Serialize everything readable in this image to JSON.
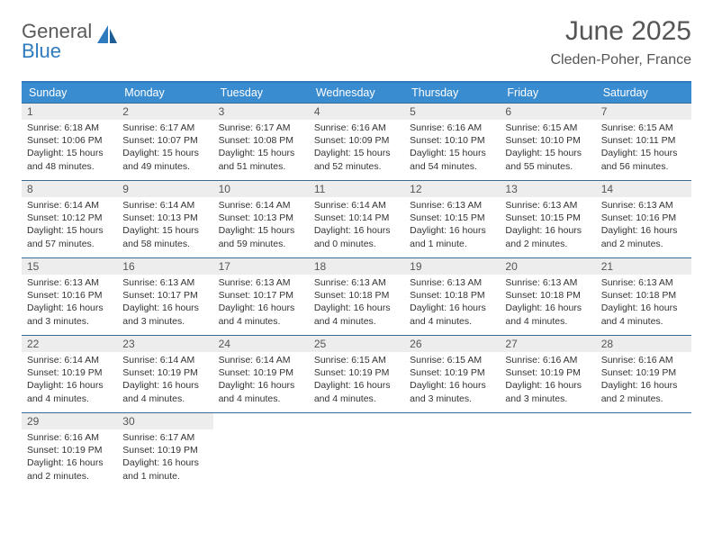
{
  "brand": {
    "word1": "General",
    "word2": "Blue"
  },
  "title": "June 2025",
  "location": "Cleden-Poher, France",
  "colors": {
    "header_bg": "#3a8cd1",
    "header_text": "#ffffff",
    "rule": "#3a6b94",
    "daynum_bg": "#ededed",
    "text": "#333333",
    "brand_blue": "#2f7bbf",
    "brand_gray": "#5a5a5a"
  },
  "dow": [
    "Sunday",
    "Monday",
    "Tuesday",
    "Wednesday",
    "Thursday",
    "Friday",
    "Saturday"
  ],
  "days": [
    {
      "n": "1",
      "sr": "Sunrise: 6:18 AM",
      "ss": "Sunset: 10:06 PM",
      "dl": "Daylight: 15 hours and 48 minutes."
    },
    {
      "n": "2",
      "sr": "Sunrise: 6:17 AM",
      "ss": "Sunset: 10:07 PM",
      "dl": "Daylight: 15 hours and 49 minutes."
    },
    {
      "n": "3",
      "sr": "Sunrise: 6:17 AM",
      "ss": "Sunset: 10:08 PM",
      "dl": "Daylight: 15 hours and 51 minutes."
    },
    {
      "n": "4",
      "sr": "Sunrise: 6:16 AM",
      "ss": "Sunset: 10:09 PM",
      "dl": "Daylight: 15 hours and 52 minutes."
    },
    {
      "n": "5",
      "sr": "Sunrise: 6:16 AM",
      "ss": "Sunset: 10:10 PM",
      "dl": "Daylight: 15 hours and 54 minutes."
    },
    {
      "n": "6",
      "sr": "Sunrise: 6:15 AM",
      "ss": "Sunset: 10:10 PM",
      "dl": "Daylight: 15 hours and 55 minutes."
    },
    {
      "n": "7",
      "sr": "Sunrise: 6:15 AM",
      "ss": "Sunset: 10:11 PM",
      "dl": "Daylight: 15 hours and 56 minutes."
    },
    {
      "n": "8",
      "sr": "Sunrise: 6:14 AM",
      "ss": "Sunset: 10:12 PM",
      "dl": "Daylight: 15 hours and 57 minutes."
    },
    {
      "n": "9",
      "sr": "Sunrise: 6:14 AM",
      "ss": "Sunset: 10:13 PM",
      "dl": "Daylight: 15 hours and 58 minutes."
    },
    {
      "n": "10",
      "sr": "Sunrise: 6:14 AM",
      "ss": "Sunset: 10:13 PM",
      "dl": "Daylight: 15 hours and 59 minutes."
    },
    {
      "n": "11",
      "sr": "Sunrise: 6:14 AM",
      "ss": "Sunset: 10:14 PM",
      "dl": "Daylight: 16 hours and 0 minutes."
    },
    {
      "n": "12",
      "sr": "Sunrise: 6:13 AM",
      "ss": "Sunset: 10:15 PM",
      "dl": "Daylight: 16 hours and 1 minute."
    },
    {
      "n": "13",
      "sr": "Sunrise: 6:13 AM",
      "ss": "Sunset: 10:15 PM",
      "dl": "Daylight: 16 hours and 2 minutes."
    },
    {
      "n": "14",
      "sr": "Sunrise: 6:13 AM",
      "ss": "Sunset: 10:16 PM",
      "dl": "Daylight: 16 hours and 2 minutes."
    },
    {
      "n": "15",
      "sr": "Sunrise: 6:13 AM",
      "ss": "Sunset: 10:16 PM",
      "dl": "Daylight: 16 hours and 3 minutes."
    },
    {
      "n": "16",
      "sr": "Sunrise: 6:13 AM",
      "ss": "Sunset: 10:17 PM",
      "dl": "Daylight: 16 hours and 3 minutes."
    },
    {
      "n": "17",
      "sr": "Sunrise: 6:13 AM",
      "ss": "Sunset: 10:17 PM",
      "dl": "Daylight: 16 hours and 4 minutes."
    },
    {
      "n": "18",
      "sr": "Sunrise: 6:13 AM",
      "ss": "Sunset: 10:18 PM",
      "dl": "Daylight: 16 hours and 4 minutes."
    },
    {
      "n": "19",
      "sr": "Sunrise: 6:13 AM",
      "ss": "Sunset: 10:18 PM",
      "dl": "Daylight: 16 hours and 4 minutes."
    },
    {
      "n": "20",
      "sr": "Sunrise: 6:13 AM",
      "ss": "Sunset: 10:18 PM",
      "dl": "Daylight: 16 hours and 4 minutes."
    },
    {
      "n": "21",
      "sr": "Sunrise: 6:13 AM",
      "ss": "Sunset: 10:18 PM",
      "dl": "Daylight: 16 hours and 4 minutes."
    },
    {
      "n": "22",
      "sr": "Sunrise: 6:14 AM",
      "ss": "Sunset: 10:19 PM",
      "dl": "Daylight: 16 hours and 4 minutes."
    },
    {
      "n": "23",
      "sr": "Sunrise: 6:14 AM",
      "ss": "Sunset: 10:19 PM",
      "dl": "Daylight: 16 hours and 4 minutes."
    },
    {
      "n": "24",
      "sr": "Sunrise: 6:14 AM",
      "ss": "Sunset: 10:19 PM",
      "dl": "Daylight: 16 hours and 4 minutes."
    },
    {
      "n": "25",
      "sr": "Sunrise: 6:15 AM",
      "ss": "Sunset: 10:19 PM",
      "dl": "Daylight: 16 hours and 4 minutes."
    },
    {
      "n": "26",
      "sr": "Sunrise: 6:15 AM",
      "ss": "Sunset: 10:19 PM",
      "dl": "Daylight: 16 hours and 3 minutes."
    },
    {
      "n": "27",
      "sr": "Sunrise: 6:16 AM",
      "ss": "Sunset: 10:19 PM",
      "dl": "Daylight: 16 hours and 3 minutes."
    },
    {
      "n": "28",
      "sr": "Sunrise: 6:16 AM",
      "ss": "Sunset: 10:19 PM",
      "dl": "Daylight: 16 hours and 2 minutes."
    },
    {
      "n": "29",
      "sr": "Sunrise: 6:16 AM",
      "ss": "Sunset: 10:19 PM",
      "dl": "Daylight: 16 hours and 2 minutes."
    },
    {
      "n": "30",
      "sr": "Sunrise: 6:17 AM",
      "ss": "Sunset: 10:19 PM",
      "dl": "Daylight: 16 hours and 1 minute."
    }
  ]
}
